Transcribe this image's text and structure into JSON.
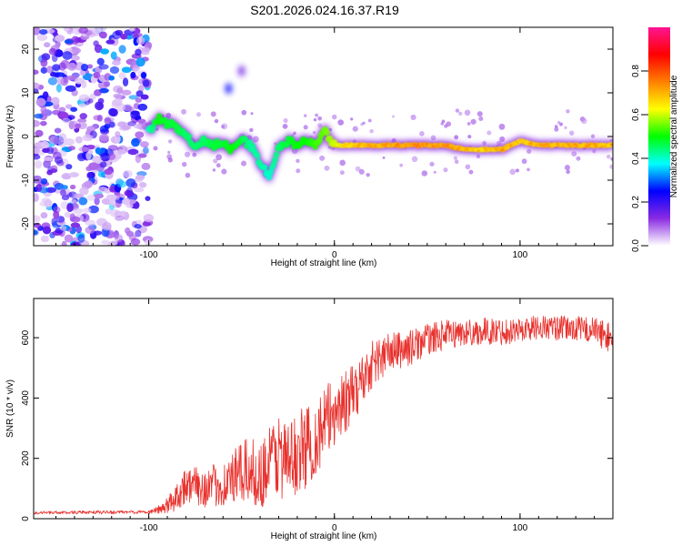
{
  "title": "S201.2026.024.16.37.R19",
  "colors": {
    "snr_line": "#e8322e",
    "axis": "#000000"
  },
  "chart_data": [
    {
      "type": "heatmap",
      "name": "spectrogram",
      "xlabel": "Height of straight line (km)",
      "ylabel": "Frequency (Hz)",
      "xlim": [
        -162,
        150
      ],
      "ylim": [
        -25,
        25
      ],
      "xticks": [
        -100,
        0,
        100
      ],
      "xtick_labels": [
        "-100",
        "0",
        "100"
      ],
      "yticks": [
        -20,
        -10,
        0,
        10,
        20
      ],
      "ytick_labels": [
        "-20",
        "-10",
        "0",
        "10",
        "20"
      ],
      "colorbar": {
        "label": "Normalized spectral amplitude",
        "range": [
          0,
          1
        ],
        "ticks": [
          0.0,
          0.2,
          0.4,
          0.6,
          0.8
        ],
        "tick_labels": [
          "0.0",
          "0.2",
          "0.4",
          "0.6",
          "0.8"
        ],
        "colormap": [
          "#ffffff",
          "#8a2be2",
          "#0000ff",
          "#00ffff",
          "#00ff00",
          "#ffff00",
          "#ff8000",
          "#ff0000",
          "#ff1493"
        ]
      },
      "noise_region": {
        "x_range": [
          -162,
          -100
        ],
        "y_range": [
          -25,
          25
        ],
        "level": 0.15
      },
      "ridge": {
        "x": [
          -100,
          -95,
          -90,
          -85,
          -80,
          -75,
          -70,
          -65,
          -60,
          -55,
          -50,
          -45,
          -40,
          -35,
          -30,
          -25,
          -20,
          -15,
          -10,
          -5,
          0,
          10,
          20,
          40,
          60,
          70,
          80,
          90,
          100,
          110,
          120,
          140,
          150
        ],
        "freq": [
          1,
          4,
          3,
          2,
          0,
          -2,
          -1,
          -2,
          -1,
          -3,
          -1,
          -2,
          -6,
          -9,
          -3,
          -1,
          -2,
          -1,
          -2,
          1,
          -2,
          -2,
          -2,
          -2,
          -2,
          -3,
          -3,
          -3,
          -1,
          -2,
          -2,
          -2,
          -2
        ],
        "amplitude": [
          0.3,
          0.5,
          0.45,
          0.45,
          0.4,
          0.4,
          0.4,
          0.45,
          0.45,
          0.5,
          0.45,
          0.35,
          0.35,
          0.3,
          0.4,
          0.45,
          0.5,
          0.5,
          0.55,
          0.6,
          0.7,
          0.8,
          0.85,
          0.9,
          0.9,
          0.85,
          0.8,
          0.85,
          0.8,
          0.85,
          0.85,
          0.85,
          0.8
        ]
      },
      "features": [
        {
          "x": -57,
          "freq": 11,
          "amplitude": 0.25
        },
        {
          "x": -50,
          "freq": 15,
          "amplitude": 0.15
        }
      ]
    },
    {
      "type": "line",
      "name": "snr",
      "xlabel": "Height of straight line (km)",
      "ylabel": "SNR (10 * v/v)",
      "xlim": [
        -162,
        150
      ],
      "ylim": [
        0,
        730
      ],
      "xticks": [
        -100,
        0,
        100
      ],
      "xtick_labels": [
        "-100",
        "0",
        "100"
      ],
      "yticks": [
        0,
        200,
        400,
        600
      ],
      "ytick_labels": [
        "0",
        "200",
        "400",
        "600"
      ],
      "envelope": {
        "x": [
          -162,
          -100,
          -92,
          -85,
          -80,
          -70,
          -60,
          -50,
          -45,
          -40,
          -35,
          -30,
          -25,
          -20,
          -10,
          0,
          10,
          20,
          30,
          40,
          50,
          60,
          70,
          80,
          90,
          100,
          110,
          120,
          130,
          140,
          150
        ],
        "mean": [
          20,
          22,
          35,
          80,
          120,
          110,
          120,
          160,
          170,
          150,
          200,
          230,
          200,
          230,
          280,
          370,
          420,
          520,
          560,
          570,
          600,
          615,
          620,
          625,
          625,
          630,
          640,
          635,
          635,
          630,
          600
        ],
        "spread": [
          10,
          12,
          25,
          70,
          80,
          90,
          100,
          140,
          150,
          140,
          180,
          200,
          170,
          190,
          180,
          160,
          130,
          110,
          90,
          80,
          70,
          65,
          60,
          60,
          60,
          55,
          55,
          55,
          55,
          60,
          70
        ]
      },
      "samples": 1300
    }
  ]
}
